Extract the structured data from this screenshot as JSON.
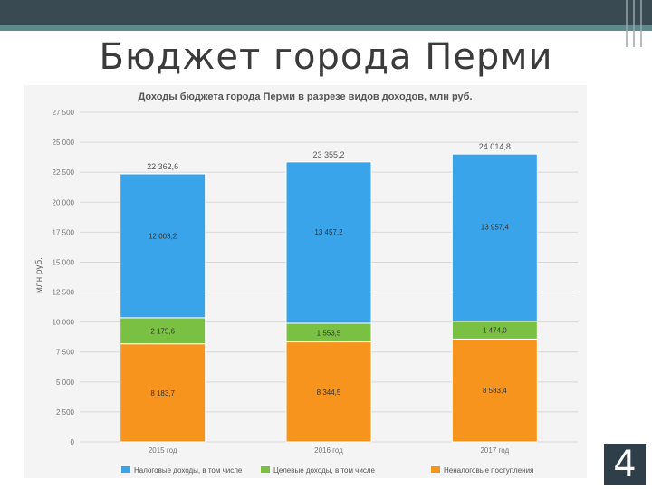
{
  "slide": {
    "title": "Бюджет города Перми",
    "page_number": "4"
  },
  "chart_data": {
    "type": "bar",
    "stacked": true,
    "title": "Доходы бюджета города Перми в разрезе видов доходов, млн руб.",
    "ylabel": "млн руб.",
    "ylim": [
      0,
      27500
    ],
    "yticks": [
      "0",
      "2 500",
      "5 000",
      "7 500",
      "10 000",
      "12 500",
      "15 000",
      "17 500",
      "20 000",
      "22 500",
      "25 000",
      "27 500"
    ],
    "grid": true,
    "legend_position": "bottom",
    "categories": [
      "2015 год",
      "2016 год",
      "2017 год"
    ],
    "totals": [
      22362.6,
      23355.2,
      24014.8
    ],
    "total_labels": [
      "22 362,6",
      "23 355,2",
      "24 014,8"
    ],
    "series": [
      {
        "name": "Неналоговые поступления",
        "color": "#f7941d",
        "values": [
          8183.7,
          8344.5,
          8583.4
        ],
        "labels": [
          "8 183,7",
          "8 344,5",
          "8 583,4"
        ]
      },
      {
        "name": "Целевые доходы, в том числе",
        "color": "#7ac143",
        "values": [
          2175.6,
          1553.5,
          1474.0
        ],
        "labels": [
          "2 175,6",
          "1 553,5",
          "1 474,0"
        ]
      },
      {
        "name": "Налоговые доходы, в том числе",
        "color": "#3aa4ea",
        "values": [
          12003.2,
          13457.2,
          13957.4
        ],
        "labels": [
          "12 003,2",
          "13 457,2",
          "13 957,4"
        ]
      }
    ],
    "legend": [
      "Налоговые доходы, в том числе",
      "Целевые доходы, в том числе",
      "Неналоговые поступления"
    ]
  }
}
